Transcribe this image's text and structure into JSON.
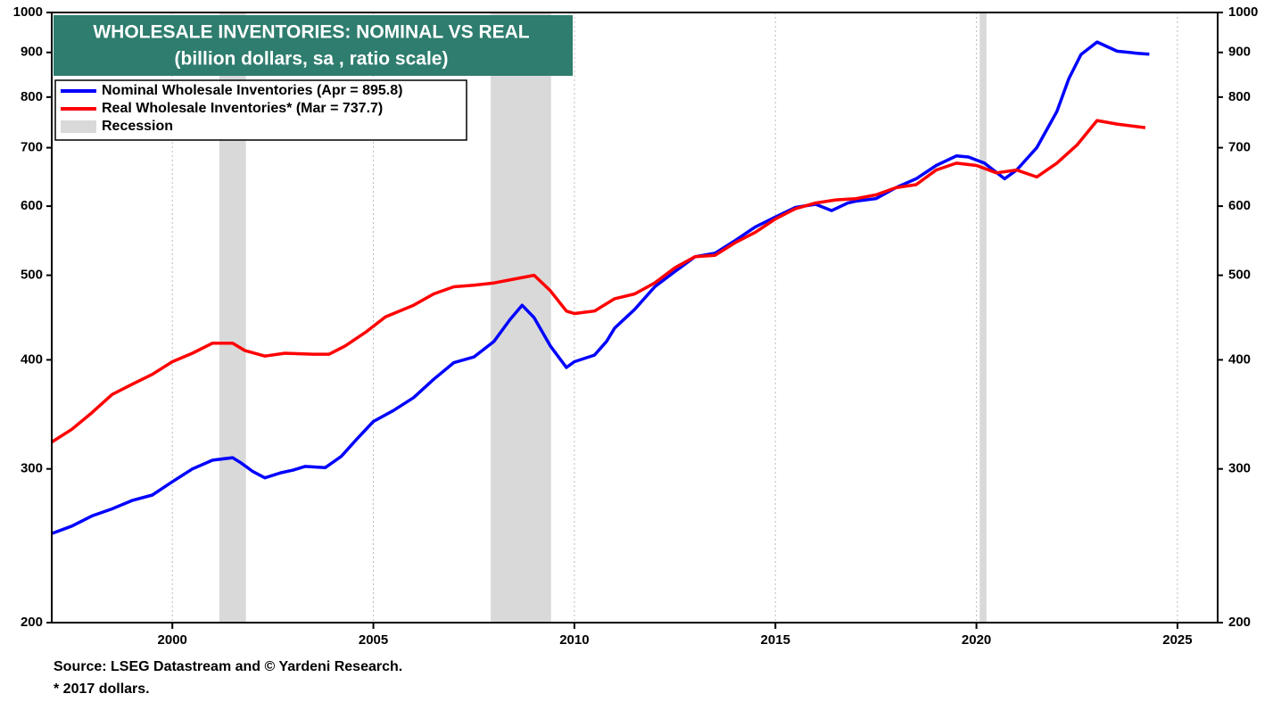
{
  "chart_data": {
    "type": "line",
    "title": "WHOLESALE INVENTORIES: NOMINAL VS REAL",
    "subtitle": "(billion dollars, sa , ratio scale)",
    "source": "Source: LSEG Datastream and © Yardeni Research.",
    "note": "* 2017 dollars.",
    "log_scale": true,
    "grid": "x",
    "legend": "upper left",
    "xlim": [
      1997,
      2026
    ],
    "xticks": [
      2000,
      2005,
      2010,
      2015,
      2020,
      2025
    ],
    "ylim": [
      200,
      1000
    ],
    "yticks": [
      200,
      300,
      400,
      500,
      600,
      700,
      800,
      900,
      1000
    ],
    "y2lim": [
      200,
      1000
    ],
    "y2ticks": [
      200,
      300,
      400,
      500,
      600,
      700,
      800,
      900,
      1000
    ],
    "recession": {
      "name": "Recession",
      "color": "#d9d9d9",
      "periods": [
        [
          2001.17,
          2001.83
        ],
        [
          2007.92,
          2009.42
        ],
        [
          2020.08,
          2020.25
        ]
      ]
    },
    "series": [
      {
        "name": "Nominal Wholesale Inventories (Apr = 895.8)",
        "color": "#0000ff",
        "x": [
          1997.0,
          1997.5,
          1998,
          1998.5,
          1999,
          1999.5,
          2000,
          2000.5,
          2001,
          2001.5,
          2001.7,
          2002,
          2002.3,
          2002.7,
          2003,
          2003.3,
          2003.8,
          2004.2,
          2004.6,
          2005,
          2005.5,
          2006,
          2006.5,
          2007,
          2007.5,
          2008,
          2008.4,
          2008.7,
          2009,
          2009.4,
          2009.8,
          2010,
          2010.5,
          2010.8,
          2011,
          2011.5,
          2012,
          2012.5,
          2013,
          2013.5,
          2014,
          2014.5,
          2015,
          2015.5,
          2016,
          2016.4,
          2016.8,
          2017,
          2017.5,
          2018,
          2018.5,
          2019,
          2019.5,
          2019.8,
          2020.2,
          2020.7,
          2021,
          2021.5,
          2022,
          2022.3,
          2022.6,
          2023,
          2023.5,
          2024,
          2024.3
        ],
        "values": [
          253,
          258,
          265,
          270,
          276,
          280,
          290,
          300,
          307,
          309,
          305,
          298,
          293,
          297,
          299,
          302,
          301,
          310,
          325,
          340,
          350,
          362,
          380,
          397,
          403,
          420,
          445,
          462,
          447,
          415,
          392,
          398,
          405,
          420,
          435,
          457,
          485,
          505,
          525,
          530,
          548,
          568,
          583,
          598,
          603,
          593,
          605,
          608,
          612,
          630,
          645,
          668,
          685,
          683,
          672,
          645,
          660,
          700,
          770,
          840,
          895,
          925,
          903,
          898,
          896
        ]
      },
      {
        "name": "Real Wholesale Inventories* (Mar = 737.7)",
        "color": "#ff0000",
        "x": [
          1997,
          1997.5,
          1998,
          1998.5,
          1999,
          1999.5,
          2000,
          2000.5,
          2001,
          2001.5,
          2001.8,
          2002.3,
          2002.8,
          2003.5,
          2003.9,
          2004.3,
          2004.8,
          2005.3,
          2006,
          2006.5,
          2007,
          2007.5,
          2008,
          2008.5,
          2009,
          2009.4,
          2009.8,
          2010,
          2010.5,
          2011,
          2011.5,
          2012,
          2012.5,
          2013,
          2013.5,
          2014,
          2014.5,
          2015,
          2015.5,
          2016,
          2016.5,
          2017,
          2017.5,
          2018,
          2018.5,
          2019,
          2019.5,
          2020,
          2020.5,
          2021,
          2021.5,
          2022,
          2022.5,
          2023,
          2023.5,
          2024,
          2024.2
        ],
        "values": [
          322,
          333,
          348,
          365,
          375,
          385,
          398,
          407,
          418,
          418,
          410,
          404,
          407,
          406,
          406,
          415,
          430,
          448,
          462,
          476,
          485,
          487,
          490,
          495,
          500,
          480,
          455,
          452,
          455,
          470,
          476,
          490,
          510,
          525,
          527,
          545,
          560,
          580,
          596,
          605,
          610,
          612,
          618,
          630,
          635,
          660,
          672,
          668,
          655,
          660,
          648,
          672,
          705,
          752,
          745,
          740,
          738
        ]
      }
    ]
  }
}
